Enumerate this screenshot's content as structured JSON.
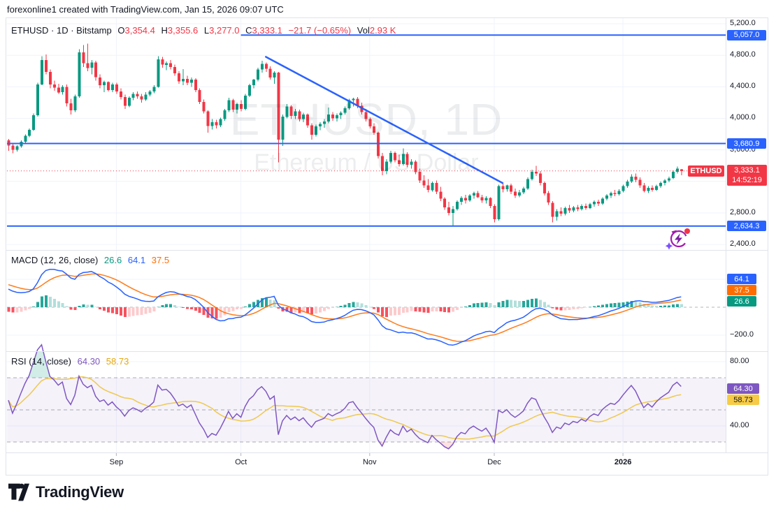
{
  "header": {
    "note": "forexonline1 created with TradingView.com, Jan 15, 2026 09:07 UTC"
  },
  "legend": {
    "symbol_title": "ETHUSD · 1D · Bitstamp",
    "o_label": "O",
    "o": "3,354.4",
    "h_label": "H",
    "h": "3,355.6",
    "l_label": "L",
    "l": "3,277.0",
    "c_label": "C",
    "c": "3,333.1",
    "change": "−21.7 (−0.65%)",
    "vol_label": "Vol",
    "vol": "2.93 K"
  },
  "macd_legend": {
    "title": "MACD",
    "params": "(12, 26, close)",
    "hist": "26.6",
    "macd": "64.1",
    "signal": "37.5"
  },
  "rsi_legend": {
    "title": "RSI",
    "params": "(14, close)",
    "value": "64.30",
    "ma": "58.73"
  },
  "watermark": {
    "line1": "ETHUSD, 1D",
    "line2": "Ethereum / US Dollar"
  },
  "price_axis": {
    "tick_labels": [
      {
        "text": "5,200.0",
        "value": 5200
      },
      {
        "text": "4,800.0",
        "value": 4800
      },
      {
        "text": "4,400.0",
        "value": 4400
      },
      {
        "text": "4,000.0",
        "value": 4000
      },
      {
        "text": "3,600.0",
        "value": 3600
      },
      {
        "text": "2,800.0",
        "value": 2800
      },
      {
        "text": "2,400.0",
        "value": 2400
      }
    ],
    "line_tags": [
      {
        "text": "5,057.0",
        "value": 5057.0
      },
      {
        "text": "3,680.9",
        "value": 3680.9
      },
      {
        "text": "2,634.3",
        "value": 2634.3
      }
    ],
    "last_tag": {
      "symbol": "ETHUSD",
      "price": "3,333.1",
      "countdown": "14:52:19"
    }
  },
  "macd_axis": {
    "tags": [
      {
        "text": "64.1",
        "color": "#2962ff"
      },
      {
        "text": "37.5",
        "color": "#ff6d00"
      },
      {
        "text": "26.6",
        "color": "#089981"
      }
    ],
    "tick_label": {
      "text": "−200.0",
      "value": -200
    }
  },
  "rsi_axis": {
    "tags": [
      {
        "text": "64.30",
        "color": "#7e57c2",
        "text_color": "#ffffff",
        "value": 64.3
      },
      {
        "text": "58.73",
        "color": "#f7cb45",
        "text_color": "#131722",
        "value": 58.73
      }
    ],
    "tick_labels": [
      {
        "text": "80.00",
        "value": 80
      },
      {
        "text": "40.00",
        "value": 40
      }
    ]
  },
  "footer": {
    "brand": "TradingView"
  },
  "colors": {
    "up": "#089981",
    "down": "#f23645",
    "drawing_blue": "#2962ff",
    "macd_line": "#2962ff",
    "signal_line": "#ff6d00",
    "hist_up_grow": "#26a69a",
    "hist_up_fall": "#b2dfdb",
    "hist_dn_fall": "#f7525f",
    "hist_dn_grow": "#fccbcd",
    "rsi_line": "#7e57c2",
    "rsi_ma": "#eec643",
    "grid": "#f0f3fa",
    "border": "#e0e3eb",
    "text": "#131722",
    "accent_red": "#f23645"
  },
  "chart_data": {
    "type": "candlestick",
    "symbol": "ETHUSD",
    "exchange": "Bitstamp",
    "interval": "1D",
    "title": "ETHUSD, 1D — Ethereum / US Dollar",
    "last_values": {
      "open": 3354.4,
      "high": 3355.6,
      "low": 3277.0,
      "close": 3333.1,
      "change": -21.7,
      "change_pct": -0.65,
      "volume": "2.93 K"
    },
    "price_axis_range": {
      "high": 5280,
      "low": 2330
    },
    "price_gridlines": [
      5200,
      4800,
      4400,
      4000,
      3600,
      3200,
      2800,
      2400
    ],
    "horizontal_lines": [
      {
        "price": 5057.0,
        "start_index": 56
      },
      {
        "price": 3680.9,
        "start_index": 0
      },
      {
        "price": 2634.3,
        "start_index": 0
      }
    ],
    "trendline": {
      "from_index": 62,
      "from_price": 4780,
      "to_index": 119,
      "to_price": 3180
    },
    "last_price": 3333.1,
    "time_ticks": [
      {
        "label": "Sep",
        "index": 26
      },
      {
        "label": "Oct",
        "index": 56
      },
      {
        "label": "Nov",
        "index": 87
      },
      {
        "label": "Dec",
        "index": 117
      },
      {
        "label": "2026",
        "index": 148,
        "year": true
      }
    ],
    "macd": {
      "fast": 12,
      "slow": 26,
      "smoothing": 9,
      "histogram": 26.6,
      "macd": 64.1,
      "signal": 37.5,
      "axis_min_shown": -200
    },
    "rsi": {
      "length": 14,
      "value": 64.3,
      "ma": 58.73,
      "bands": [
        70,
        50,
        30
      ],
      "axis_ticks": [
        80,
        40
      ]
    },
    "candles": [
      [
        3720,
        3740,
        3590,
        3655
      ],
      [
        3655,
        3670,
        3555,
        3600
      ],
      [
        3600,
        3660,
        3580,
        3645
      ],
      [
        3645,
        3720,
        3630,
        3705
      ],
      [
        3705,
        3795,
        3690,
        3780
      ],
      [
        3780,
        3870,
        3760,
        3855
      ],
      [
        3855,
        4060,
        3840,
        4040
      ],
      [
        4040,
        4450,
        4020,
        4430
      ],
      [
        4430,
        4790,
        4420,
        4740
      ],
      [
        4740,
        4810,
        4560,
        4590
      ],
      [
        4590,
        4620,
        4380,
        4430
      ],
      [
        4430,
        4480,
        4350,
        4390
      ],
      [
        4390,
        4440,
        4310,
        4330
      ],
      [
        4330,
        4420,
        4300,
        4400
      ],
      [
        4400,
        4430,
        4150,
        4190
      ],
      [
        4190,
        4250,
        4050,
        4100
      ],
      [
        4100,
        4300,
        4080,
        4280
      ],
      [
        4280,
        4878,
        4260,
        4835
      ],
      [
        4835,
        4930,
        4650,
        4700
      ],
      [
        4700,
        4948,
        4600,
        4640
      ],
      [
        4640,
        4740,
        4560,
        4710
      ],
      [
        4710,
        4730,
        4480,
        4520
      ],
      [
        4520,
        4560,
        4380,
        4420
      ],
      [
        4420,
        4480,
        4330,
        4460
      ],
      [
        4460,
        4470,
        4340,
        4360
      ],
      [
        4360,
        4450,
        4330,
        4430
      ],
      [
        4430,
        4450,
        4310,
        4340
      ],
      [
        4340,
        4380,
        4240,
        4270
      ],
      [
        4270,
        4300,
        4120,
        4160
      ],
      [
        4160,
        4280,
        4140,
        4260
      ],
      [
        4260,
        4330,
        4230,
        4310
      ],
      [
        4310,
        4340,
        4250,
        4280
      ],
      [
        4280,
        4310,
        4200,
        4240
      ],
      [
        4240,
        4330,
        4220,
        4300
      ],
      [
        4300,
        4360,
        4280,
        4340
      ],
      [
        4340,
        4420,
        4320,
        4400
      ],
      [
        4400,
        4790,
        4390,
        4750
      ],
      [
        4750,
        4780,
        4640,
        4680
      ],
      [
        4680,
        4720,
        4610,
        4700
      ],
      [
        4700,
        4740,
        4620,
        4650
      ],
      [
        4650,
        4680,
        4540,
        4570
      ],
      [
        4570,
        4600,
        4440,
        4470
      ],
      [
        4470,
        4626,
        4420,
        4500
      ],
      [
        4500,
        4540,
        4420,
        4450
      ],
      [
        4450,
        4520,
        4400,
        4490
      ],
      [
        4490,
        4510,
        4330,
        4360
      ],
      [
        4360,
        4380,
        4180,
        4210
      ],
      [
        4210,
        4240,
        4060,
        4090
      ],
      [
        4090,
        4100,
        3817,
        3900
      ],
      [
        3900,
        3990,
        3860,
        3950
      ],
      [
        3950,
        3980,
        3870,
        3910
      ],
      [
        3910,
        4010,
        3890,
        3990
      ],
      [
        3990,
        4120,
        3970,
        4100
      ],
      [
        4100,
        4260,
        4080,
        4230
      ],
      [
        4230,
        4250,
        4080,
        4110
      ],
      [
        4110,
        4200,
        4060,
        4180
      ],
      [
        4180,
        4230,
        4090,
        4120
      ],
      [
        4120,
        4310,
        4100,
        4290
      ],
      [
        4290,
        4440,
        4270,
        4420
      ],
      [
        4420,
        4500,
        4380,
        4490
      ],
      [
        4490,
        4640,
        4470,
        4620
      ],
      [
        4620,
        4730,
        4580,
        4690
      ],
      [
        4690,
        4710,
        4590,
        4630
      ],
      [
        4630,
        4660,
        4490,
        4520
      ],
      [
        4520,
        4600,
        4440,
        4580
      ],
      [
        4580,
        4590,
        3443,
        3730
      ],
      [
        3730,
        4050,
        3650,
        4020
      ],
      [
        4020,
        4180,
        4000,
        4150
      ],
      [
        4150,
        4170,
        3990,
        4030
      ],
      [
        4030,
        4120,
        3990,
        4090
      ],
      [
        4090,
        4110,
        3960,
        3990
      ],
      [
        3990,
        4070,
        3950,
        4050
      ],
      [
        4050,
        4060,
        3880,
        3910
      ],
      [
        3910,
        3940,
        3730,
        3790
      ],
      [
        3790,
        3920,
        3770,
        3900
      ],
      [
        3900,
        3950,
        3850,
        3930
      ],
      [
        3930,
        3990,
        3880,
        3960
      ],
      [
        3960,
        4139,
        3940,
        4050
      ],
      [
        4050,
        4080,
        3970,
        4000
      ],
      [
        4000,
        4060,
        3960,
        4040
      ],
      [
        4040,
        4090,
        3990,
        4070
      ],
      [
        4070,
        4150,
        4050,
        4130
      ],
      [
        4130,
        4250,
        4110,
        4230
      ],
      [
        4230,
        4260,
        4150,
        4250
      ],
      [
        4250,
        4270,
        4130,
        4160
      ],
      [
        4160,
        4200,
        4050,
        4080
      ],
      [
        4080,
        4120,
        3960,
        3990
      ],
      [
        3990,
        4010,
        3870,
        3900
      ],
      [
        3900,
        3940,
        3790,
        3820
      ],
      [
        3820,
        3830,
        3490,
        3520
      ],
      [
        3520,
        3560,
        3280,
        3330
      ],
      [
        3330,
        3480,
        3290,
        3450
      ],
      [
        3450,
        3590,
        3430,
        3560
      ],
      [
        3560,
        3580,
        3440,
        3470
      ],
      [
        3470,
        3540,
        3390,
        3420
      ],
      [
        3420,
        3620,
        3400,
        3550
      ],
      [
        3550,
        3570,
        3380,
        3410
      ],
      [
        3410,
        3480,
        3360,
        3450
      ],
      [
        3450,
        3470,
        3290,
        3320
      ],
      [
        3320,
        3360,
        3180,
        3210
      ],
      [
        3210,
        3280,
        3120,
        3150
      ],
      [
        3150,
        3230,
        3060,
        3090
      ],
      [
        3090,
        3200,
        3070,
        3180
      ],
      [
        3180,
        3210,
        3040,
        3070
      ],
      [
        3070,
        3130,
        2950,
        2980
      ],
      [
        2980,
        3000,
        2840,
        2870
      ],
      [
        2870,
        2940,
        2770,
        2800
      ],
      [
        2800,
        2890,
        2634,
        2850
      ],
      [
        2850,
        2960,
        2830,
        2940
      ],
      [
        2940,
        3010,
        2900,
        2990
      ],
      [
        2990,
        3030,
        2920,
        2960
      ],
      [
        2960,
        3040,
        2940,
        3020
      ],
      [
        3020,
        3070,
        2980,
        3050
      ],
      [
        3050,
        3080,
        2990,
        3000
      ],
      [
        3000,
        3030,
        2930,
        2960
      ],
      [
        2960,
        3010,
        2920,
        2990
      ],
      [
        2990,
        3000,
        2860,
        2890
      ],
      [
        2890,
        2910,
        2680,
        2720
      ],
      [
        2720,
        3160,
        2700,
        3140
      ],
      [
        3140,
        3180,
        3060,
        3100
      ],
      [
        3100,
        3160,
        3070,
        3150
      ],
      [
        3150,
        3170,
        3040,
        3070
      ],
      [
        3070,
        3110,
        2990,
        3020
      ],
      [
        3020,
        3090,
        3000,
        3060
      ],
      [
        3060,
        3130,
        3040,
        3110
      ],
      [
        3110,
        3250,
        3090,
        3230
      ],
      [
        3230,
        3350,
        3210,
        3320
      ],
      [
        3320,
        3397,
        3270,
        3300
      ],
      [
        3300,
        3330,
        3150,
        3180
      ],
      [
        3180,
        3200,
        3020,
        3050
      ],
      [
        3050,
        3080,
        2900,
        2930
      ],
      [
        2930,
        2950,
        2680,
        2750
      ],
      [
        2750,
        2850,
        2700,
        2820
      ],
      [
        2820,
        2870,
        2760,
        2790
      ],
      [
        2790,
        2880,
        2770,
        2860
      ],
      [
        2860,
        2900,
        2800,
        2830
      ],
      [
        2830,
        2890,
        2810,
        2870
      ],
      [
        2870,
        2900,
        2820,
        2850
      ],
      [
        2850,
        2910,
        2830,
        2890
      ],
      [
        2890,
        2920,
        2840,
        2860
      ],
      [
        2860,
        2930,
        2850,
        2910
      ],
      [
        2910,
        2960,
        2880,
        2940
      ],
      [
        2940,
        2970,
        2890,
        2920
      ],
      [
        2920,
        3000,
        2900,
        2980
      ],
      [
        2980,
        3040,
        2960,
        3020
      ],
      [
        3020,
        3070,
        2990,
        3050
      ],
      [
        3050,
        3090,
        3010,
        3040
      ],
      [
        3040,
        3100,
        3020,
        3080
      ],
      [
        3080,
        3160,
        3060,
        3140
      ],
      [
        3140,
        3220,
        3120,
        3200
      ],
      [
        3200,
        3290,
        3180,
        3260
      ],
      [
        3260,
        3300,
        3190,
        3220
      ],
      [
        3220,
        3250,
        3120,
        3150
      ],
      [
        3150,
        3180,
        3060,
        3080
      ],
      [
        3080,
        3140,
        3050,
        3120
      ],
      [
        3120,
        3150,
        3070,
        3090
      ],
      [
        3090,
        3160,
        3080,
        3140
      ],
      [
        3140,
        3200,
        3120,
        3180
      ],
      [
        3180,
        3230,
        3150,
        3210
      ],
      [
        3210,
        3260,
        3190,
        3240
      ],
      [
        3240,
        3340,
        3230,
        3320
      ],
      [
        3320,
        3390,
        3300,
        3360
      ],
      [
        3354.4,
        3355.6,
        3277,
        3333.1
      ]
    ]
  }
}
